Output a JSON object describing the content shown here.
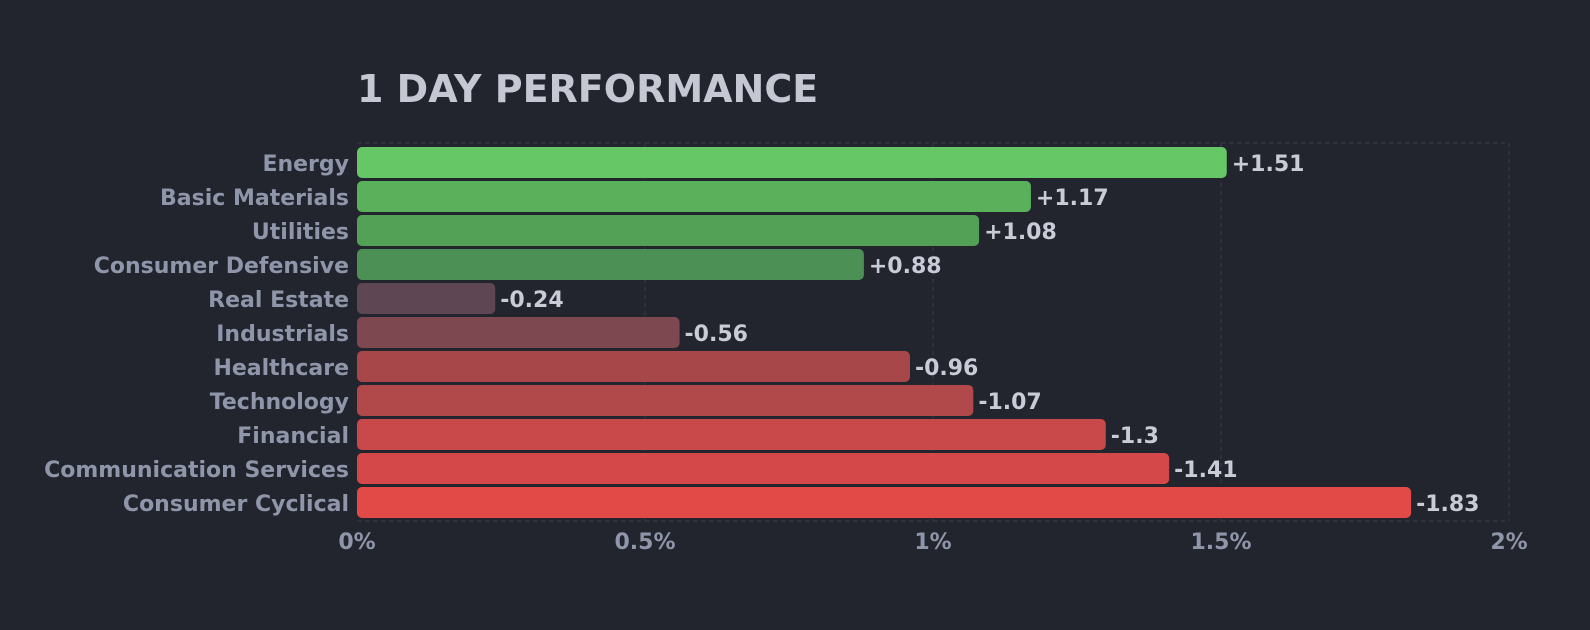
{
  "chart_data": {
    "type": "bar",
    "orientation": "horizontal",
    "title": "1 DAY PERFORMANCE",
    "xlabel": "",
    "ylabel": "",
    "xlim": [
      0,
      2
    ],
    "x_ticks": [
      "0%",
      "0.5%",
      "1%",
      "1.5%",
      "2%"
    ],
    "x_tick_values": [
      0,
      0.5,
      1,
      1.5,
      2
    ],
    "grid": true,
    "categories": [
      "Energy",
      "Basic Materials",
      "Utilities",
      "Consumer Defensive",
      "Real Estate",
      "Industrials",
      "Healthcare",
      "Technology",
      "Financial",
      "Communication Services",
      "Consumer Cyclical"
    ],
    "values": [
      1.51,
      1.17,
      1.08,
      0.88,
      -0.24,
      -0.56,
      -0.96,
      -1.07,
      -1.3,
      -1.41,
      -1.83
    ],
    "value_labels": [
      "+1.51",
      "+1.17",
      "+1.08",
      "+0.88",
      "-0.24",
      "-0.56",
      "-0.96",
      "-1.07",
      "-1.3",
      "-1.41",
      "-1.83"
    ],
    "bar_colors": [
      "#66c767",
      "#5bb05c",
      "#53a156",
      "#4c9056",
      "#5e4752",
      "#7d4850",
      "#a8474a",
      "#b1484a",
      "#c9484a",
      "#d4484a",
      "#e14a46"
    ]
  }
}
